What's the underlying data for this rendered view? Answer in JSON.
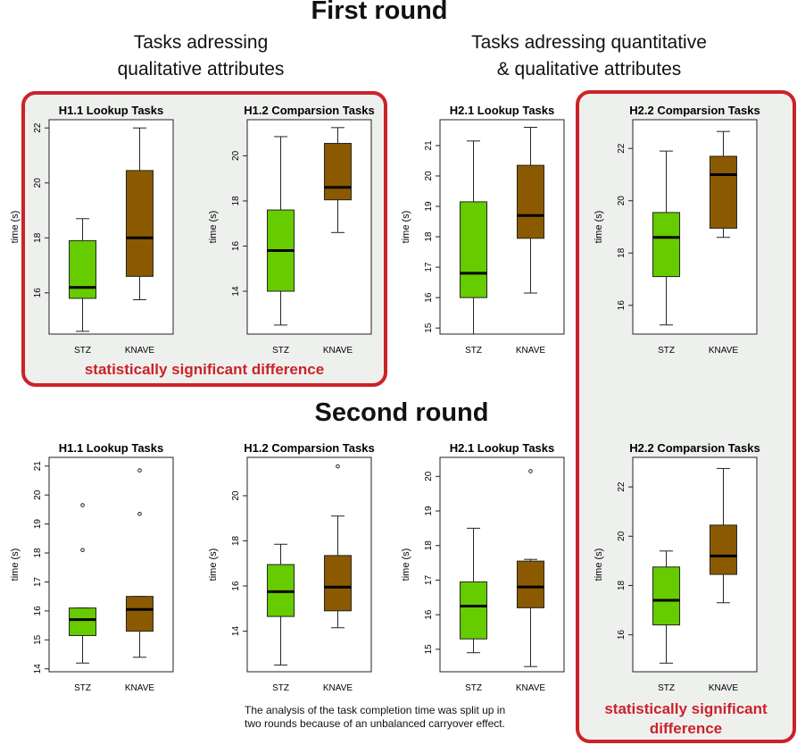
{
  "titles": {
    "first_round": "First round",
    "second_round": "Second round",
    "group_qualitative": [
      "Tasks adressing",
      "qualitative attributes"
    ],
    "group_quant_qual": [
      "Tasks adressing quantitative",
      "& qualitative attributes"
    ]
  },
  "annotations": {
    "significant_1": "statistically significant difference",
    "significant_2": [
      "statistically significant",
      "difference"
    ],
    "caption": [
      "The analysis of the task completion time was split up in",
      "two rounds because of an unbalanced carryover effect."
    ]
  },
  "colors": {
    "STZ": "#66cc00",
    "KNAVE": "#8b5a00",
    "highlight_border": "#cc2229",
    "highlight_bg": "#eef0ee"
  },
  "chart_data": [
    {
      "type": "boxplot",
      "round": "First round",
      "title": "H1.1 Lookup Tasks",
      "ylabel": "time (s)",
      "categories": [
        "STZ",
        "KNAVE"
      ],
      "ylim": [
        14.5,
        22.3
      ],
      "yticks": [
        16,
        18,
        20,
        22
      ],
      "boxes": [
        {
          "min": 14.6,
          "q1": 15.8,
          "median": 16.2,
          "q3": 17.9,
          "max": 18.7,
          "outliers": []
        },
        {
          "min": 15.75,
          "q1": 16.6,
          "median": 18.0,
          "q3": 20.45,
          "max": 22.0,
          "outliers": []
        }
      ]
    },
    {
      "type": "boxplot",
      "round": "First round",
      "title": "H1.2 Comparsion Tasks",
      "ylabel": "time (s)",
      "categories": [
        "STZ",
        "KNAVE"
      ],
      "ylim": [
        12.1,
        21.6
      ],
      "yticks": [
        14,
        16,
        18,
        20
      ],
      "boxes": [
        {
          "min": 12.5,
          "q1": 14.0,
          "median": 15.8,
          "q3": 17.6,
          "max": 20.85,
          "outliers": []
        },
        {
          "min": 16.6,
          "q1": 18.05,
          "median": 18.6,
          "q3": 20.55,
          "max": 21.25,
          "outliers": []
        }
      ]
    },
    {
      "type": "boxplot",
      "round": "First round",
      "title": "H2.1 Lookup Tasks",
      "ylabel": "time (s)",
      "categories": [
        "STZ",
        "KNAVE"
      ],
      "ylim": [
        14.8,
        21.85
      ],
      "yticks": [
        15,
        16,
        17,
        18,
        19,
        20,
        21
      ],
      "boxes": [
        {
          "min": 14.8,
          "q1": 16.0,
          "median": 16.8,
          "q3": 19.15,
          "max": 21.15,
          "outliers": []
        },
        {
          "min": 16.15,
          "q1": 17.95,
          "median": 18.7,
          "q3": 20.35,
          "max": 21.6,
          "outliers": []
        }
      ]
    },
    {
      "type": "boxplot",
      "round": "First round",
      "title": "H2.2 Comparsion Tasks",
      "ylabel": "time (s)",
      "categories": [
        "STZ",
        "KNAVE"
      ],
      "ylim": [
        14.9,
        23.1
      ],
      "yticks": [
        16,
        18,
        20,
        22
      ],
      "boxes": [
        {
          "min": 15.25,
          "q1": 17.1,
          "median": 18.6,
          "q3": 19.55,
          "max": 21.9,
          "outliers": []
        },
        {
          "min": 18.6,
          "q1": 18.95,
          "median": 21.0,
          "q3": 21.7,
          "max": 22.65,
          "outliers": []
        }
      ]
    },
    {
      "type": "boxplot",
      "round": "Second round",
      "title": "H1.1 Lookup Tasks",
      "ylabel": "time (s)",
      "categories": [
        "STZ",
        "KNAVE"
      ],
      "ylim": [
        13.9,
        21.3
      ],
      "yticks": [
        14,
        15,
        16,
        17,
        18,
        19,
        20,
        21
      ],
      "boxes": [
        {
          "min": 14.2,
          "q1": 15.15,
          "median": 15.7,
          "q3": 16.1,
          "max": 16.1,
          "outliers": [
            18.1,
            19.65
          ]
        },
        {
          "min": 14.4,
          "q1": 15.3,
          "median": 16.05,
          "q3": 16.5,
          "max": 16.5,
          "outliers": [
            19.35,
            20.85
          ]
        }
      ]
    },
    {
      "type": "boxplot",
      "round": "Second round",
      "title": "H1.2 Comparsion Tasks",
      "ylabel": "time (s)",
      "categories": [
        "STZ",
        "KNAVE"
      ],
      "ylim": [
        12.2,
        21.7
      ],
      "yticks": [
        14,
        16,
        18,
        20
      ],
      "boxes": [
        {
          "min": 12.5,
          "q1": 14.65,
          "median": 15.75,
          "q3": 16.95,
          "max": 17.85,
          "outliers": []
        },
        {
          "min": 14.15,
          "q1": 14.9,
          "median": 15.95,
          "q3": 17.35,
          "max": 19.1,
          "outliers": [
            21.3
          ]
        }
      ]
    },
    {
      "type": "boxplot",
      "round": "Second round",
      "title": "H2.1 Lookup Tasks",
      "ylabel": "time (s)",
      "categories": [
        "STZ",
        "KNAVE"
      ],
      "ylim": [
        14.35,
        20.55
      ],
      "yticks": [
        15,
        16,
        17,
        18,
        19,
        20
      ],
      "boxes": [
        {
          "min": 14.9,
          "q1": 15.3,
          "median": 16.25,
          "q3": 16.95,
          "max": 18.5,
          "outliers": []
        },
        {
          "min": 14.5,
          "q1": 16.2,
          "median": 16.8,
          "q3": 17.55,
          "max": 17.6,
          "outliers": [
            20.15
          ]
        }
      ]
    },
    {
      "type": "boxplot",
      "round": "Second round",
      "title": "H2.2 Comparsion Tasks",
      "ylabel": "time (s)",
      "categories": [
        "STZ",
        "KNAVE"
      ],
      "ylim": [
        14.5,
        23.2
      ],
      "yticks": [
        16,
        18,
        20,
        22
      ],
      "boxes": [
        {
          "min": 14.85,
          "q1": 16.4,
          "median": 17.4,
          "q3": 18.75,
          "max": 19.4,
          "outliers": []
        },
        {
          "min": 17.3,
          "q1": 18.45,
          "median": 19.2,
          "q3": 20.45,
          "max": 22.75,
          "outliers": []
        }
      ]
    }
  ]
}
